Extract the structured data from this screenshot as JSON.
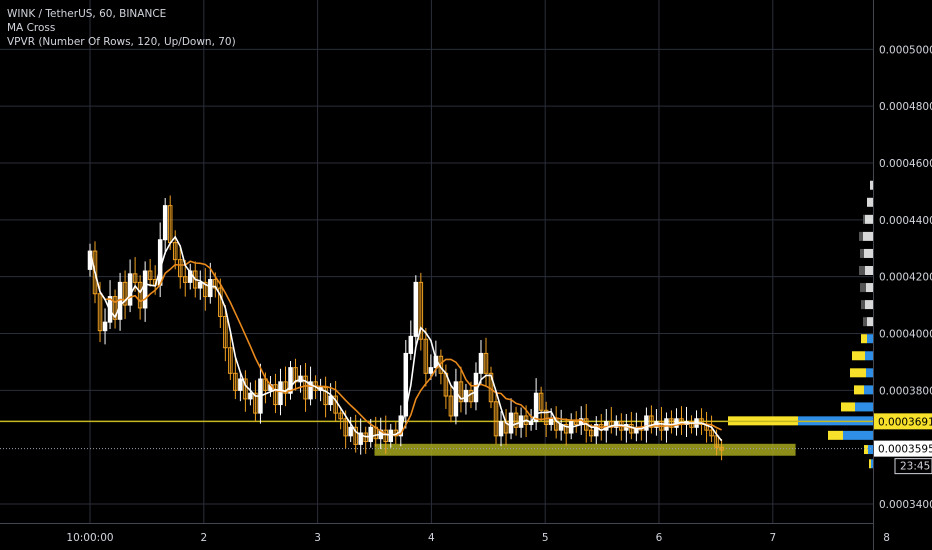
{
  "legend": {
    "symbol_line": "WINK / TetherUS, 60, BINANCE",
    "indicator1": "MA Cross",
    "indicator2": "VPVR (Number Of Rows, 120, Up/Down, 70)"
  },
  "colors": {
    "background": "#000000",
    "grid": "#2a2e39",
    "candle_up": "#ffffff",
    "candle_down": "#f0a020",
    "ma_fast": "#ffffff",
    "ma_slow": "#e8891c",
    "hline": "#c8b820",
    "zone": "#a6a61e",
    "vol_up": "#2f8ee6",
    "vol_down": "#f7e12a",
    "price_badge": "#f7e12a",
    "text": "#d1d4dc"
  },
  "price_scale": {
    "ticks": [
      "0.0005000",
      "0.0004800",
      "0.0004600",
      "0.0004400",
      "0.0004200",
      "0.0004000",
      "0.0003800",
      "0.0003400"
    ],
    "hline_label": "0.0003691",
    "last_price_label": "0.0003595",
    "countdown": "23:45"
  },
  "time_scale": {
    "ticks": [
      "10:00:00",
      "2",
      "3",
      "4",
      "5",
      "6",
      "7",
      "8"
    ]
  },
  "chart_data": {
    "type": "candlestick",
    "symbol": "WINK / TetherUS",
    "interval": "60",
    "exchange": "BINANCE",
    "y_range": [
      0.000332,
      0.000516
    ],
    "x_range_days": [
      0.9,
      8.3
    ],
    "grid": true,
    "price_ticks": [
      0.0005,
      0.00048,
      0.00046,
      0.00044,
      0.00042,
      0.0004,
      0.00038,
      0.00034
    ],
    "time_tick_positions": [
      1.0,
      2.0,
      3.0,
      4.0,
      5.0,
      6.0,
      7.0,
      8.0
    ],
    "horizontal_line": 0.0003691,
    "last_price": 0.0003595,
    "support_zone": {
      "from_day": 3.5,
      "to_day": 7.2,
      "low": 0.000357,
      "high": 0.0003612
    },
    "closes": [
      0.000429,
      0.000414,
      0.000401,
      0.000404,
      0.000413,
      0.000405,
      0.000418,
      0.00041,
      0.000421,
      0.000418,
      0.000409,
      0.000422,
      0.000419,
      0.000417,
      0.000433,
      0.000445,
      0.000432,
      0.000426,
      0.00042,
      0.000418,
      0.000422,
      0.000416,
      0.000418,
      0.000413,
      0.000419,
      0.000416,
      0.000406,
      0.000395,
      0.000386,
      0.00038,
      0.000384,
      0.000377,
      0.000379,
      0.000372,
      0.000384,
      0.00038,
      0.000382,
      0.000375,
      0.000383,
      0.000379,
      0.000388,
      0.000383,
      0.000385,
      0.000377,
      0.000383,
      0.00038,
      0.000381,
      0.000375,
      0.000378,
      0.000372,
      0.00037,
      0.000364,
      0.000367,
      0.000361,
      0.000365,
      0.000362,
      0.000367,
      0.000363,
      0.000366,
      0.000362,
      0.000366,
      0.000364,
      0.000371,
      0.000393,
      0.000399,
      0.000418,
      0.000398,
      0.000386,
      0.000388,
      0.000392,
      0.000386,
      0.000378,
      0.000371,
      0.000383,
      0.000376,
      0.00038,
      0.000376,
      0.000386,
      0.000393,
      0.000386,
      0.000376,
      0.000364,
      0.000369,
      0.000365,
      0.000372,
      0.000367,
      0.000371,
      0.000368,
      0.000369,
      0.000379,
      0.000373,
      0.000368,
      0.00037,
      0.000366,
      0.000368,
      0.000365,
      0.000369,
      0.000368,
      0.00037,
      0.000366,
      0.000364,
      0.000368,
      0.000366,
      0.000369,
      0.000367,
      0.000369,
      0.000366,
      0.000368,
      0.000365,
      0.000367,
      0.000366,
      0.000371,
      0.000367,
      0.000369,
      0.000366,
      0.00037,
      0.000367,
      0.00037,
      0.000368,
      0.000369,
      0.000367,
      0.00037,
      0.000368,
      0.000366,
      0.000364,
      0.00036,
      0.000359
    ],
    "volume_profile": [
      {
        "price": 0.000452,
        "up": 3,
        "down": 0
      },
      {
        "price": 0.000446,
        "up": 6,
        "down": 0
      },
      {
        "price": 0.00044,
        "up": 8,
        "down": 2
      },
      {
        "price": 0.000434,
        "up": 10,
        "down": 4
      },
      {
        "price": 0.000428,
        "up": 9,
        "down": 4
      },
      {
        "price": 0.000422,
        "up": 8,
        "down": 6
      },
      {
        "price": 0.000416,
        "up": 7,
        "down": 6
      },
      {
        "price": 0.00041,
        "up": 8,
        "down": 4
      },
      {
        "price": 0.000404,
        "up": 6,
        "down": 4
      },
      {
        "price": 0.000398,
        "up": 6,
        "down": 6
      },
      {
        "price": 0.000392,
        "up": 8,
        "down": 13
      },
      {
        "price": 0.000386,
        "up": 7,
        "down": 16
      },
      {
        "price": 0.00038,
        "up": 9,
        "down": 10
      },
      {
        "price": 0.000374,
        "up": 18,
        "down": 14
      },
      {
        "price": 0.0003691,
        "up": 75,
        "down": 70
      },
      {
        "price": 0.000364,
        "up": 30,
        "down": 15
      },
      {
        "price": 0.000359,
        "up": 5,
        "down": 4
      },
      {
        "price": 0.000354,
        "up": 2,
        "down": 2
      }
    ]
  }
}
